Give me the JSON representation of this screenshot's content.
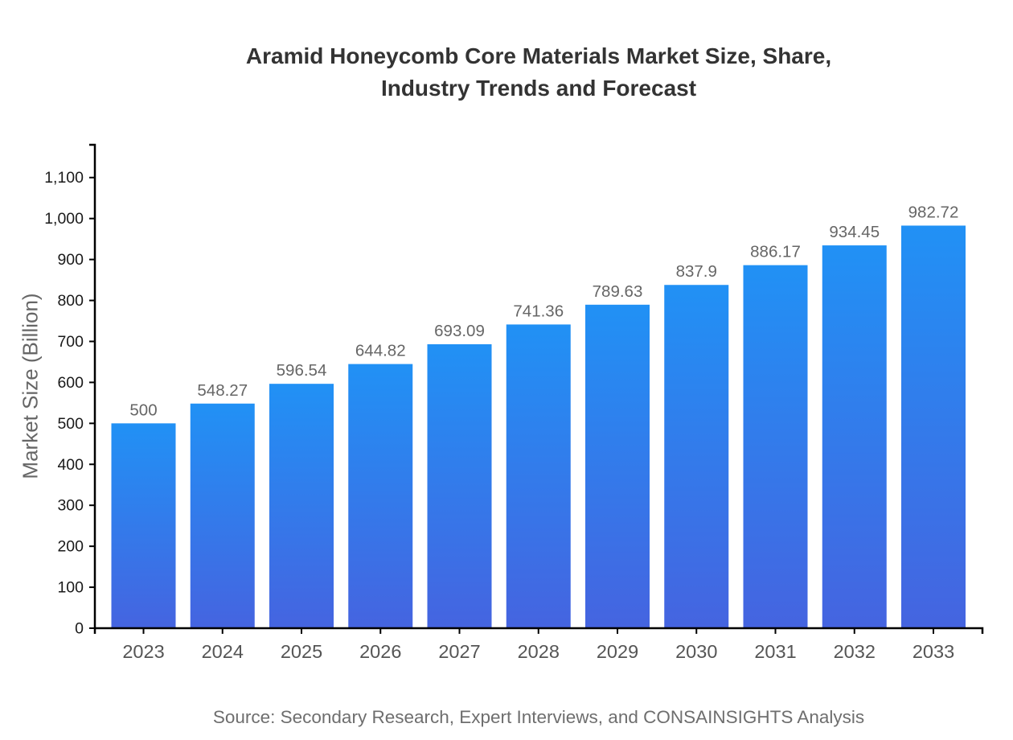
{
  "title_lines": [
    "Aramid Honeycomb Core Materials Market Size, Share,",
    "Industry Trends and Forecast"
  ],
  "source": "Source: Secondary Research, Expert Interviews, and CONSAINSIGHTS Analysis",
  "colors": {
    "bar_gradient_top": "#2191f5",
    "bar_gradient_bottom": "#4564e0",
    "axis_line": "#000000",
    "y_tick_label": "#1a1a1a",
    "x_tick_label": "#555555",
    "value_label": "#666666",
    "title": "#333333",
    "caption": "#6e6e6e"
  },
  "chart_data": {
    "type": "bar",
    "title": "Aramid Honeycomb Core Materials Market Size, Share, Industry Trends and Forecast",
    "categories": [
      "2023",
      "2024",
      "2025",
      "2026",
      "2027",
      "2028",
      "2029",
      "2030",
      "2031",
      "2032",
      "2033"
    ],
    "values": [
      500,
      548.27,
      596.54,
      644.82,
      693.09,
      741.36,
      789.63,
      837.9,
      886.17,
      934.45,
      982.72
    ],
    "xlabel": "",
    "ylabel": "Market Size (Billion)",
    "ylim": [
      0,
      1180
    ],
    "ytick_step": 100,
    "ytick_max": 1100,
    "grid": false,
    "legend": false,
    "value_labels_shown": true
  }
}
